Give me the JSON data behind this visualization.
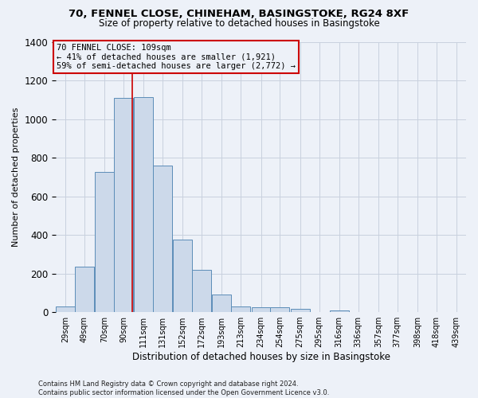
{
  "title1": "70, FENNEL CLOSE, CHINEHAM, BASINGSTOKE, RG24 8XF",
  "title2": "Size of property relative to detached houses in Basingstoke",
  "xlabel": "Distribution of detached houses by size in Basingstoke",
  "ylabel": "Number of detached properties",
  "footnote": "Contains HM Land Registry data © Crown copyright and database right 2024.\nContains public sector information licensed under the Open Government Licence v3.0.",
  "bar_categories": [
    "29sqm",
    "49sqm",
    "70sqm",
    "90sqm",
    "111sqm",
    "131sqm",
    "152sqm",
    "172sqm",
    "193sqm",
    "213sqm",
    "234sqm",
    "254sqm",
    "275sqm",
    "295sqm",
    "316sqm",
    "336sqm",
    "357sqm",
    "377sqm",
    "398sqm",
    "418sqm",
    "439sqm"
  ],
  "bar_values": [
    30,
    235,
    725,
    1110,
    1115,
    760,
    375,
    220,
    90,
    30,
    25,
    25,
    15,
    0,
    10,
    0,
    0,
    0,
    0,
    0,
    0
  ],
  "bar_color": "#ccd9ea",
  "bar_edge_color": "#5b8db8",
  "grid_color": "#c8d0de",
  "bin_edges": [
    29,
    49,
    70,
    90,
    111,
    131,
    152,
    172,
    193,
    213,
    234,
    254,
    275,
    295,
    316,
    336,
    357,
    377,
    398,
    418,
    439
  ],
  "property_size": 109,
  "annotation_text_line1": "70 FENNEL CLOSE: 109sqm",
  "annotation_text_line2": "← 41% of detached houses are smaller (1,921)",
  "annotation_text_line3": "59% of semi-detached houses are larger (2,772) →",
  "red_line_color": "#cc0000",
  "ylim": [
    0,
    1400
  ],
  "bg_color": "#edf1f8"
}
